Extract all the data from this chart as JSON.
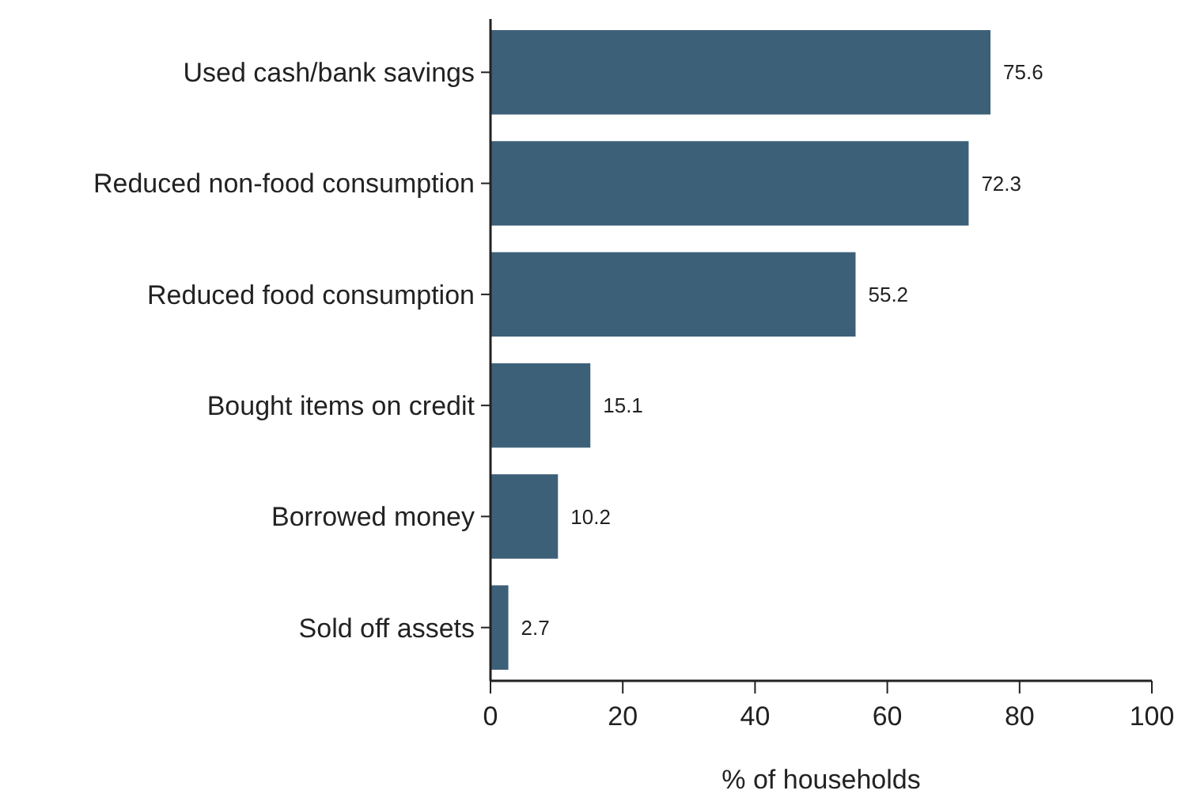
{
  "chart_data": {
    "type": "bar",
    "orientation": "horizontal",
    "categories": [
      "Used cash/bank savings",
      "Reduced non-food consumption",
      "Reduced food consumption",
      "Bought items on credit",
      "Borrowed money",
      "Sold off assets"
    ],
    "values": [
      75.6,
      72.3,
      55.2,
      15.1,
      10.2,
      2.7
    ],
    "color": "#3d6079",
    "data_labels": true,
    "xlabel": "% of households",
    "xlim": [
      0,
      100
    ],
    "xticks": [
      0,
      20,
      40,
      60,
      80,
      100
    ]
  }
}
